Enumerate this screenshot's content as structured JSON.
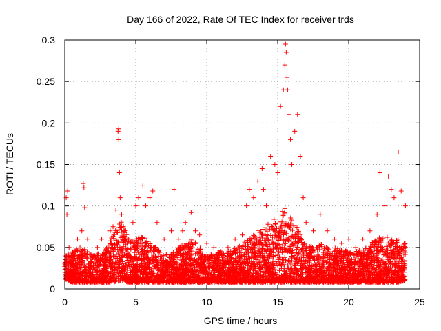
{
  "chart_data": {
    "type": "scatter",
    "title": "Day 166 of 2022, Rate Of TEC Index for receiver trds",
    "xlabel": "GPS time / hours",
    "ylabel": "ROTI / TECUs",
    "xlim": [
      0,
      25
    ],
    "ylim": [
      0,
      0.3
    ],
    "x_ticks": [
      "0",
      "5",
      "10",
      "15",
      "20",
      "25"
    ],
    "y_ticks": [
      "0",
      "0.05",
      "0.1",
      "0.15",
      "0.2",
      "0.25",
      "0.3"
    ],
    "x_tick_values": [
      0,
      5,
      10,
      15,
      20,
      25
    ],
    "y_tick_values": [
      0,
      0.05,
      0.1,
      0.15,
      0.2,
      0.25,
      0.3
    ],
    "grid": true,
    "marker": "+",
    "series_color": "#ff0000",
    "points": [
      [
        0.0,
        0.02
      ],
      [
        0.1,
        0.11
      ],
      [
        0.15,
        0.09
      ],
      [
        0.2,
        0.118
      ],
      [
        0.3,
        0.05
      ],
      [
        0.5,
        0.03
      ],
      [
        0.7,
        0.04
      ],
      [
        0.9,
        0.06
      ],
      [
        1.0,
        0.025
      ],
      [
        1.2,
        0.07
      ],
      [
        1.3,
        0.127
      ],
      [
        1.35,
        0.122
      ],
      [
        1.4,
        0.098
      ],
      [
        1.6,
        0.06
      ],
      [
        2.0,
        0.04
      ],
      [
        2.3,
        0.05
      ],
      [
        2.6,
        0.06
      ],
      [
        2.9,
        0.04
      ],
      [
        3.0,
        0.05
      ],
      [
        3.2,
        0.07
      ],
      [
        3.4,
        0.075
      ],
      [
        3.6,
        0.095
      ],
      [
        3.75,
        0.19
      ],
      [
        3.8,
        0.193
      ],
      [
        3.8,
        0.18
      ],
      [
        3.85,
        0.14
      ],
      [
        3.9,
        0.11
      ],
      [
        4.0,
        0.09
      ],
      [
        4.2,
        0.06
      ],
      [
        4.5,
        0.06
      ],
      [
        4.8,
        0.08
      ],
      [
        5.0,
        0.1
      ],
      [
        5.2,
        0.11
      ],
      [
        5.5,
        0.125
      ],
      [
        5.7,
        0.1
      ],
      [
        6.0,
        0.11
      ],
      [
        6.2,
        0.118
      ],
      [
        6.5,
        0.08
      ],
      [
        7.0,
        0.06
      ],
      [
        7.5,
        0.07
      ],
      [
        7.7,
        0.12
      ],
      [
        8.0,
        0.06
      ],
      [
        8.3,
        0.07
      ],
      [
        8.5,
        0.08
      ],
      [
        8.9,
        0.092
      ],
      [
        9.2,
        0.07
      ],
      [
        9.5,
        0.065
      ],
      [
        10.0,
        0.055
      ],
      [
        10.5,
        0.05
      ],
      [
        11.0,
        0.045
      ],
      [
        11.5,
        0.05
      ],
      [
        12.0,
        0.06
      ],
      [
        12.5,
        0.065
      ],
      [
        12.8,
        0.1
      ],
      [
        13.0,
        0.12
      ],
      [
        13.3,
        0.11
      ],
      [
        13.6,
        0.13
      ],
      [
        13.9,
        0.145
      ],
      [
        14.0,
        0.12
      ],
      [
        14.2,
        0.1
      ],
      [
        14.5,
        0.16
      ],
      [
        14.8,
        0.15
      ],
      [
        15.0,
        0.14
      ],
      [
        15.2,
        0.22
      ],
      [
        15.4,
        0.24
      ],
      [
        15.5,
        0.27
      ],
      [
        15.55,
        0.295
      ],
      [
        15.6,
        0.285
      ],
      [
        15.65,
        0.255
      ],
      [
        15.7,
        0.24
      ],
      [
        15.8,
        0.21
      ],
      [
        15.9,
        0.18
      ],
      [
        16.0,
        0.15
      ],
      [
        16.2,
        0.19
      ],
      [
        16.4,
        0.21
      ],
      [
        16.6,
        0.16
      ],
      [
        16.8,
        0.11
      ],
      [
        17.0,
        0.08
      ],
      [
        17.5,
        0.07
      ],
      [
        18.0,
        0.09
      ],
      [
        18.5,
        0.07
      ],
      [
        19.0,
        0.06
      ],
      [
        19.5,
        0.055
      ],
      [
        20.0,
        0.06
      ],
      [
        20.5,
        0.05
      ],
      [
        21.0,
        0.06
      ],
      [
        21.5,
        0.07
      ],
      [
        22.0,
        0.09
      ],
      [
        22.2,
        0.14
      ],
      [
        22.5,
        0.1
      ],
      [
        22.8,
        0.135
      ],
      [
        23.0,
        0.12
      ],
      [
        23.2,
        0.11
      ],
      [
        23.5,
        0.165
      ],
      [
        23.7,
        0.118
      ],
      [
        24.0,
        0.1
      ]
    ],
    "background_band": {
      "x": [
        0,
        0.5,
        1,
        1.5,
        2,
        2.5,
        3,
        3.5,
        4,
        4.5,
        5,
        5.5,
        6,
        6.5,
        7,
        7.5,
        8,
        8.5,
        9,
        9.5,
        10,
        10.5,
        11,
        11.5,
        12,
        12.5,
        13,
        13.5,
        14,
        14.5,
        15,
        15.5,
        16,
        16.5,
        17,
        17.5,
        18,
        18.5,
        19,
        19.5,
        20,
        20.5,
        21,
        21.5,
        22,
        22.5,
        23,
        23.5,
        24
      ],
      "low": [
        0.012,
        0.008,
        0.008,
        0.008,
        0.008,
        0.008,
        0.008,
        0.008,
        0.01,
        0.008,
        0.008,
        0.008,
        0.008,
        0.008,
        0.008,
        0.008,
        0.008,
        0.008,
        0.008,
        0.008,
        0.008,
        0.008,
        0.008,
        0.008,
        0.008,
        0.008,
        0.008,
        0.008,
        0.008,
        0.008,
        0.008,
        0.008,
        0.008,
        0.008,
        0.008,
        0.008,
        0.008,
        0.008,
        0.008,
        0.008,
        0.008,
        0.008,
        0.008,
        0.008,
        0.008,
        0.008,
        0.008,
        0.008,
        0.01
      ],
      "high": [
        0.04,
        0.045,
        0.05,
        0.048,
        0.04,
        0.045,
        0.05,
        0.07,
        0.085,
        0.06,
        0.06,
        0.065,
        0.055,
        0.05,
        0.04,
        0.045,
        0.05,
        0.055,
        0.06,
        0.05,
        0.04,
        0.045,
        0.045,
        0.045,
        0.05,
        0.055,
        0.06,
        0.07,
        0.075,
        0.08,
        0.09,
        0.1,
        0.085,
        0.07,
        0.055,
        0.05,
        0.055,
        0.05,
        0.05,
        0.048,
        0.045,
        0.045,
        0.05,
        0.055,
        0.06,
        0.065,
        0.06,
        0.06,
        0.055
      ]
    }
  }
}
